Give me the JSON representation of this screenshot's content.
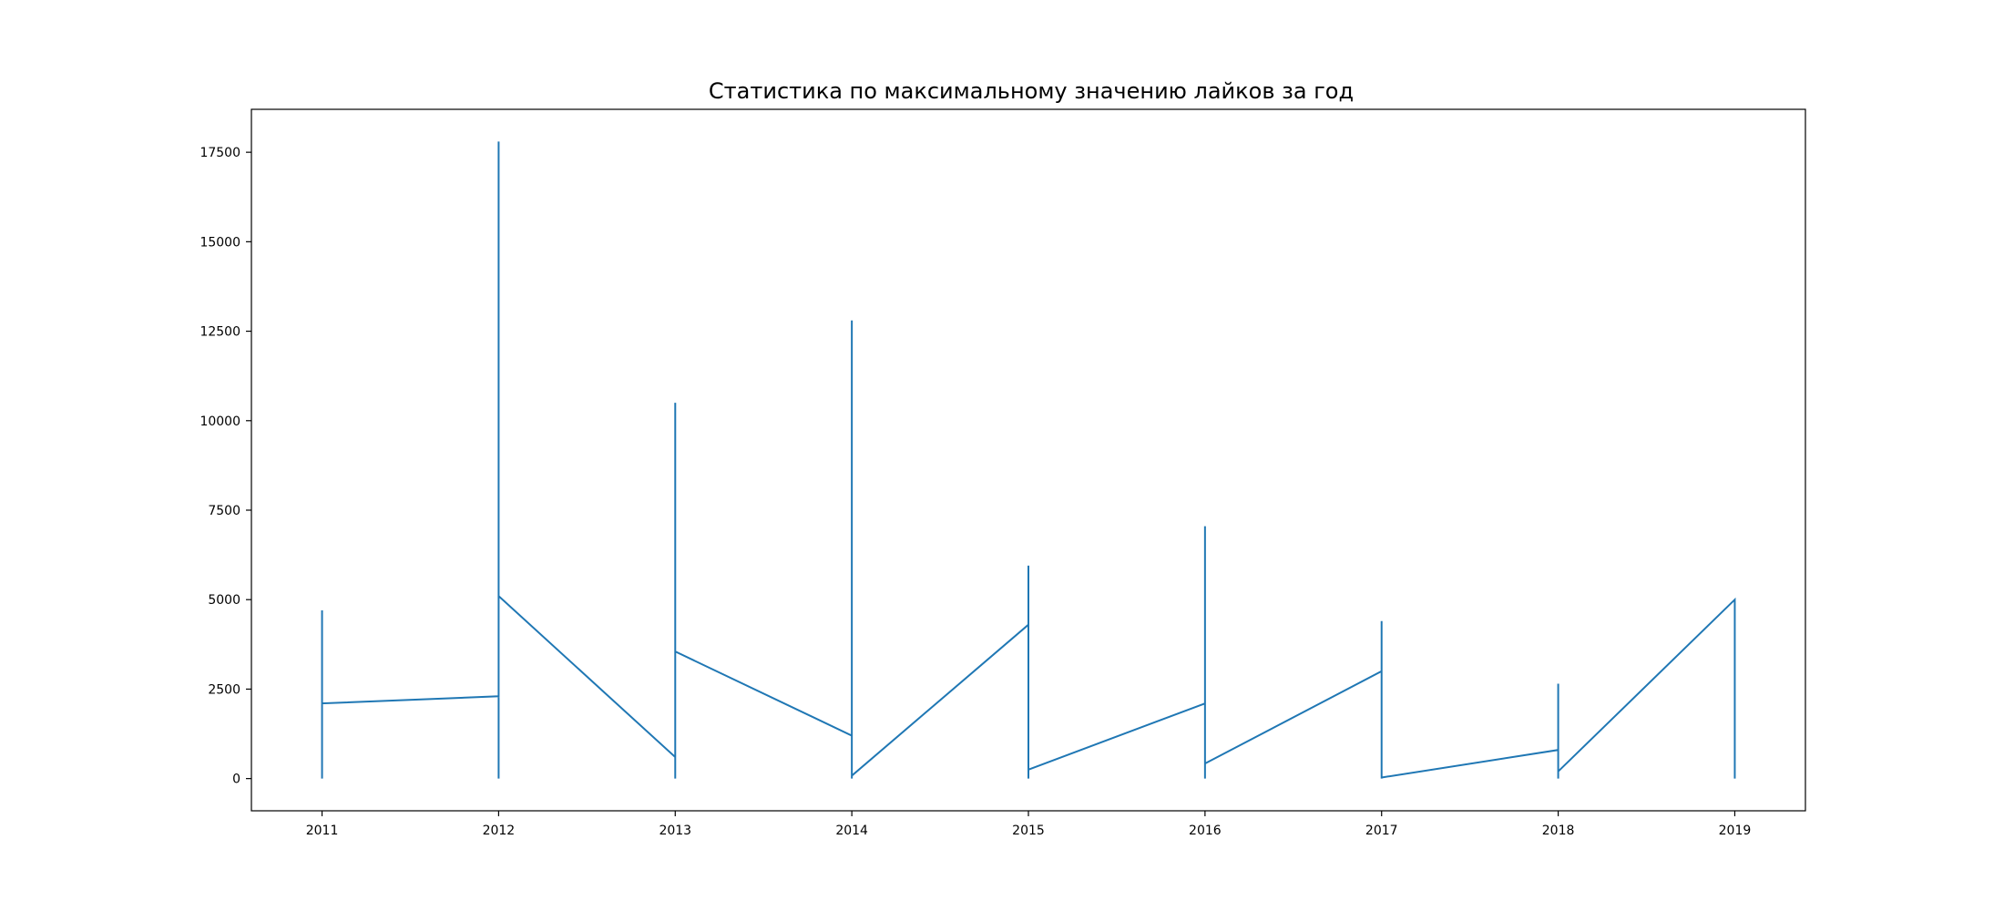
{
  "chart_data": {
    "type": "line",
    "title": "Статистика по максимальному значению лайков за год",
    "xlabel": "",
    "ylabel": "",
    "xlim": [
      2010.6,
      2019.4
    ],
    "ylim": [
      -900,
      18700
    ],
    "x_ticks": [
      "2011",
      "2012",
      "2013",
      "2014",
      "2015",
      "2016",
      "2017",
      "2018",
      "2019"
    ],
    "y_ticks": [
      "0",
      "2500",
      "5000",
      "7500",
      "10000",
      "12500",
      "15000",
      "17500"
    ],
    "grid": false,
    "legend": "none",
    "series": [
      {
        "color": "#1f77b4",
        "points": [
          [
            2011,
            0
          ],
          [
            2011,
            4700
          ],
          [
            2011,
            2100
          ],
          [
            2012,
            2300
          ],
          [
            2012,
            17800
          ],
          [
            2012,
            0
          ],
          [
            2012,
            5100
          ],
          [
            2013,
            600
          ],
          [
            2013,
            0
          ],
          [
            2013,
            10500
          ],
          [
            2013,
            3550
          ],
          [
            2014,
            1200
          ],
          [
            2014,
            12800
          ],
          [
            2014,
            0
          ],
          [
            2014,
            80
          ],
          [
            2015,
            4300
          ],
          [
            2015,
            0
          ],
          [
            2015,
            5950
          ],
          [
            2015,
            250
          ],
          [
            2016,
            2100
          ],
          [
            2016,
            0
          ],
          [
            2016,
            7050
          ],
          [
            2016,
            420
          ],
          [
            2017,
            3000
          ],
          [
            2017,
            4400
          ],
          [
            2017,
            0
          ],
          [
            2017,
            30
          ],
          [
            2018,
            800
          ],
          [
            2018,
            0
          ],
          [
            2018,
            2650
          ],
          [
            2018,
            200
          ],
          [
            2019,
            5000
          ],
          [
            2019,
            0
          ]
        ]
      }
    ]
  }
}
